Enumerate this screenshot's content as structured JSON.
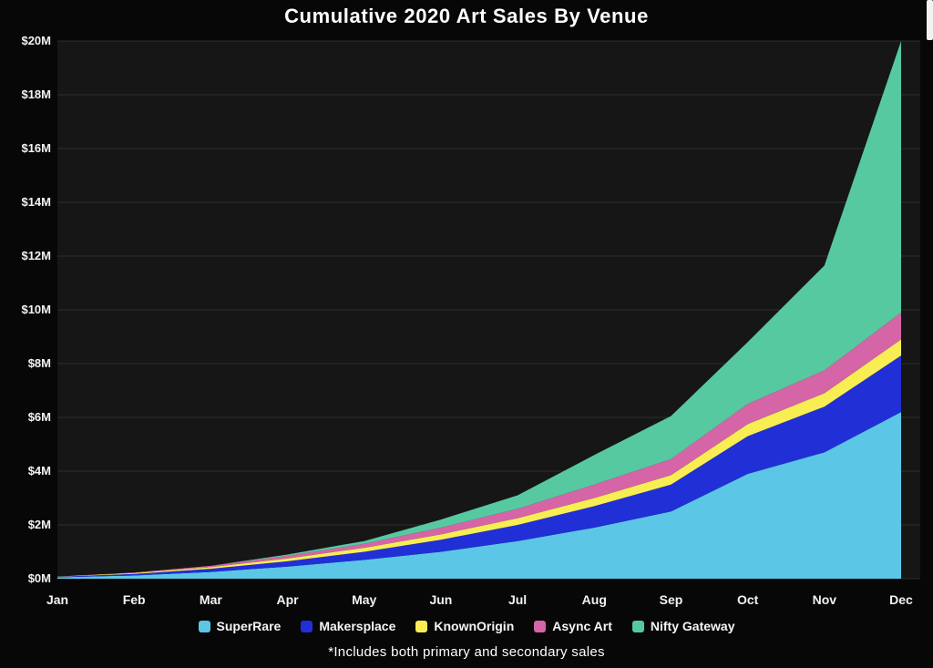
{
  "title": "Cumulative 2020 Art Sales By Venue",
  "footnote": "*Includes both primary and secondary sales",
  "colors": {
    "background": "#070707",
    "plot_bg": "#161616",
    "gridline": "#2e2e2e",
    "text": "#f2f2f2"
  },
  "chart_data": {
    "type": "area",
    "stacked": true,
    "title": "Cumulative 2020 Art Sales By Venue",
    "x_categories": [
      "Jan",
      "Feb",
      "Mar",
      "Apr",
      "May",
      "Jun",
      "Jul",
      "Aug",
      "Sep",
      "Oct",
      "Nov",
      "Dec"
    ],
    "ylim": [
      0,
      20
    ],
    "y_tick_step": 2,
    "y_tick_prefix": "$",
    "y_tick_suffix": "M",
    "units": "millions USD (cumulative)",
    "grid": "horizontal",
    "legend_position": "bottom",
    "series": [
      {
        "name": "SuperRare",
        "color": "#5bc6e6",
        "values": [
          0.05,
          0.12,
          0.25,
          0.45,
          0.7,
          1.0,
          1.4,
          1.9,
          2.5,
          3.9,
          4.7,
          6.2
        ]
      },
      {
        "name": "Makersplace",
        "color": "#2130d6",
        "values": [
          0.02,
          0.06,
          0.12,
          0.2,
          0.3,
          0.45,
          0.6,
          0.8,
          1.0,
          1.4,
          1.7,
          2.1
        ]
      },
      {
        "name": "KnownOrigin",
        "color": "#f8ee53",
        "values": [
          0.01,
          0.03,
          0.06,
          0.1,
          0.15,
          0.2,
          0.25,
          0.3,
          0.35,
          0.45,
          0.5,
          0.6
        ]
      },
      {
        "name": "Async Art",
        "color": "#d565a6",
        "values": [
          0.0,
          0.02,
          0.05,
          0.1,
          0.15,
          0.25,
          0.35,
          0.5,
          0.6,
          0.75,
          0.85,
          1.0
        ]
      },
      {
        "name": "Nifty Gateway",
        "color": "#57c9a0",
        "values": [
          0.0,
          0.0,
          0.0,
          0.05,
          0.1,
          0.3,
          0.5,
          1.1,
          1.6,
          2.3,
          3.9,
          10.1
        ]
      }
    ],
    "stacked_totals": [
      0.08,
      0.23,
      0.48,
      0.9,
      1.4,
      2.2,
      3.1,
      4.6,
      6.05,
      8.8,
      11.65,
      20.0
    ]
  }
}
